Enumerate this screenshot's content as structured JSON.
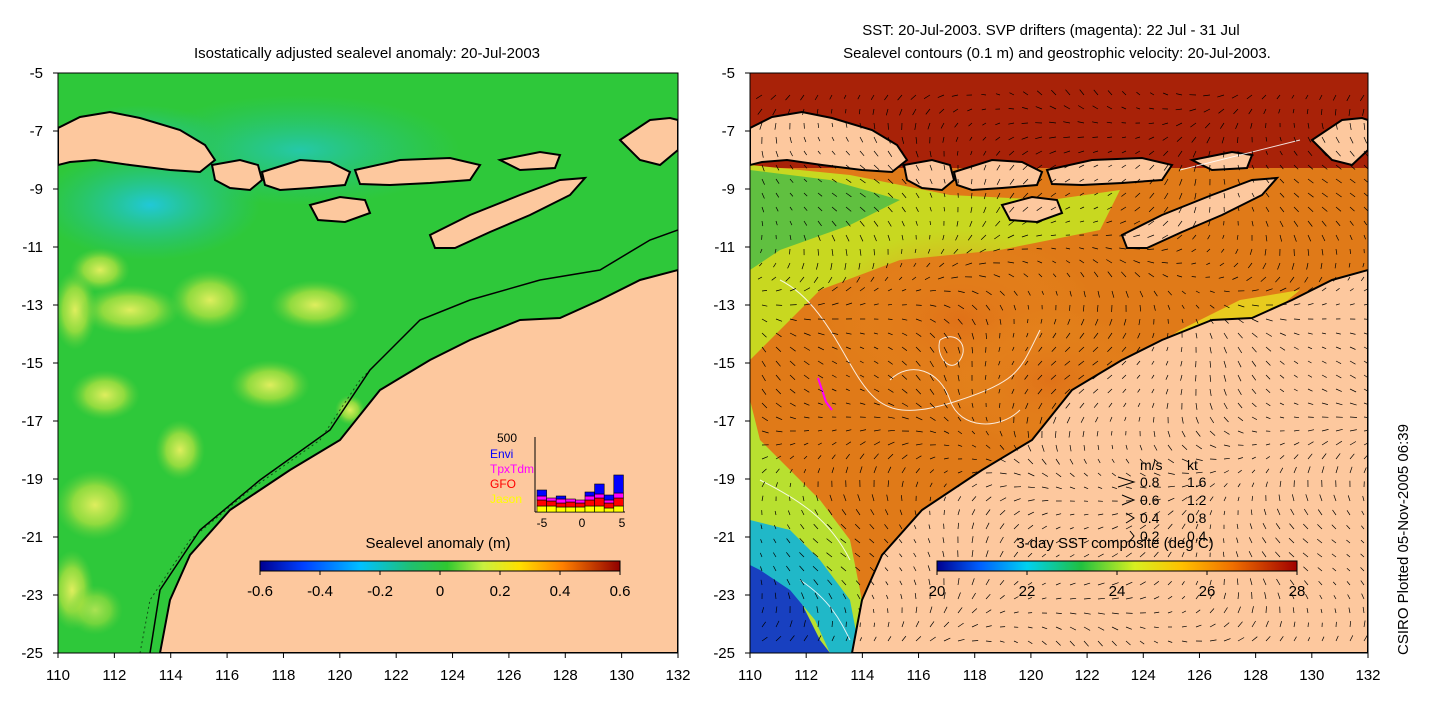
{
  "left_panel": {
    "title": "Isostatically adjusted sealevel anomaly: 20-Jul-2003",
    "x_ticks": [
      "110",
      "112",
      "114",
      "116",
      "118",
      "120",
      "122",
      "124",
      "126",
      "128",
      "130",
      "132"
    ],
    "y_ticks": [
      "-5",
      "-7",
      "-9",
      "-11",
      "-13",
      "-15",
      "-17",
      "-19",
      "-21",
      "-23",
      "-25"
    ],
    "colorbar": {
      "label": "Sealevel anomaly (m)",
      "ticks": [
        "-0.6",
        "-0.4",
        "-0.2",
        "0",
        "0.2",
        "0.4",
        "0.6"
      ]
    },
    "histogram": {
      "ymax_label": "500",
      "legend": [
        {
          "label": "Envi",
          "color": "#0000ff"
        },
        {
          "label": "TpxTdm",
          "color": "#ff00ff"
        },
        {
          "label": "GFO",
          "color": "#ff0000"
        },
        {
          "label": "Jason",
          "color": "#ffff00"
        }
      ],
      "x_ticks": [
        "-5",
        "0",
        "5"
      ]
    }
  },
  "right_panel": {
    "title_line1": "SST: 20-Jul-2003. SVP drifters (magenta): 22 Jul - 31 Jul",
    "title_line2": "Sealevel contours (0.1 m) and geostrophic velocity: 20-Jul-2003.",
    "x_ticks": [
      "110",
      "112",
      "114",
      "116",
      "118",
      "120",
      "122",
      "124",
      "126",
      "128",
      "130",
      "132"
    ],
    "y_ticks": [
      "-5",
      "-7",
      "-9",
      "-11",
      "-13",
      "-15",
      "-17",
      "-19",
      "-21",
      "-23",
      "-25"
    ],
    "colorbar": {
      "label": "3-day SST composite (deg C)",
      "ticks": [
        "20",
        "22",
        "24",
        "26",
        "28"
      ]
    },
    "velocity_legend": {
      "header_ms": "m/s",
      "header_kt": "kt",
      "rows": [
        {
          "ms": "0.8",
          "kt": "1.6"
        },
        {
          "ms": "0.6",
          "kt": "1.2"
        },
        {
          "ms": "0.4",
          "kt": "0.8"
        },
        {
          "ms": "0.2",
          "kt": "0.4"
        }
      ]
    }
  },
  "side_stamp": "CSIRO Plotted 05-Nov-2005 06:39",
  "colors": {
    "land": "#fdc89e",
    "coast": "#000000",
    "sla_base": "#2ec83a",
    "sst_warm": "#d85a10"
  }
}
